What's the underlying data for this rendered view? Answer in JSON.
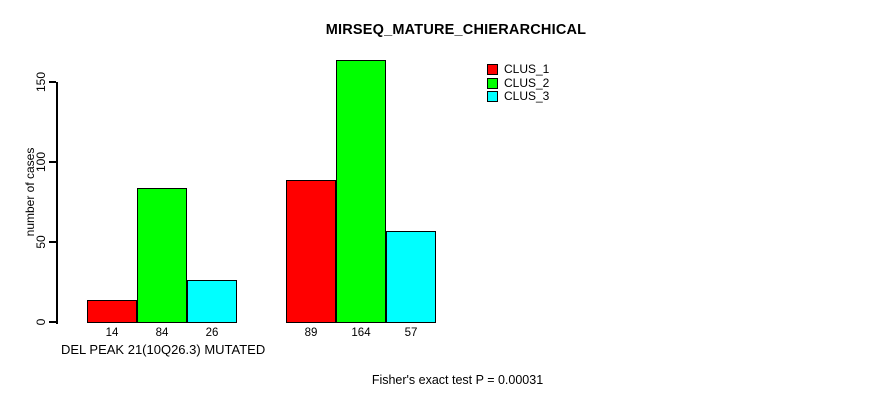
{
  "chart_data": {
    "type": "bar",
    "title": "MIRSEQ_MATURE_CHIERARCHICAL",
    "ylabel": "number of cases",
    "xlabel": "DEL PEAK 21(10Q26.3) MUTATED",
    "annotation": "Fisher's exact test P = 0.00031",
    "series": [
      {
        "name": "CLUS_1",
        "color": "#ff0000",
        "values": [
          14,
          89
        ]
      },
      {
        "name": "CLUS_2",
        "color": "#00ff00",
        "values": [
          84,
          164
        ]
      },
      {
        "name": "CLUS_3",
        "color": "#00ffff",
        "values": [
          26,
          57
        ]
      }
    ],
    "yticks": [
      0,
      50,
      100,
      150
    ],
    "ylim": [
      0,
      164
    ],
    "bar_value_labels": true,
    "grid": false,
    "legend": {
      "position": "top-right",
      "entries": [
        "CLUS_1",
        "CLUS_2",
        "CLUS_3"
      ]
    }
  }
}
